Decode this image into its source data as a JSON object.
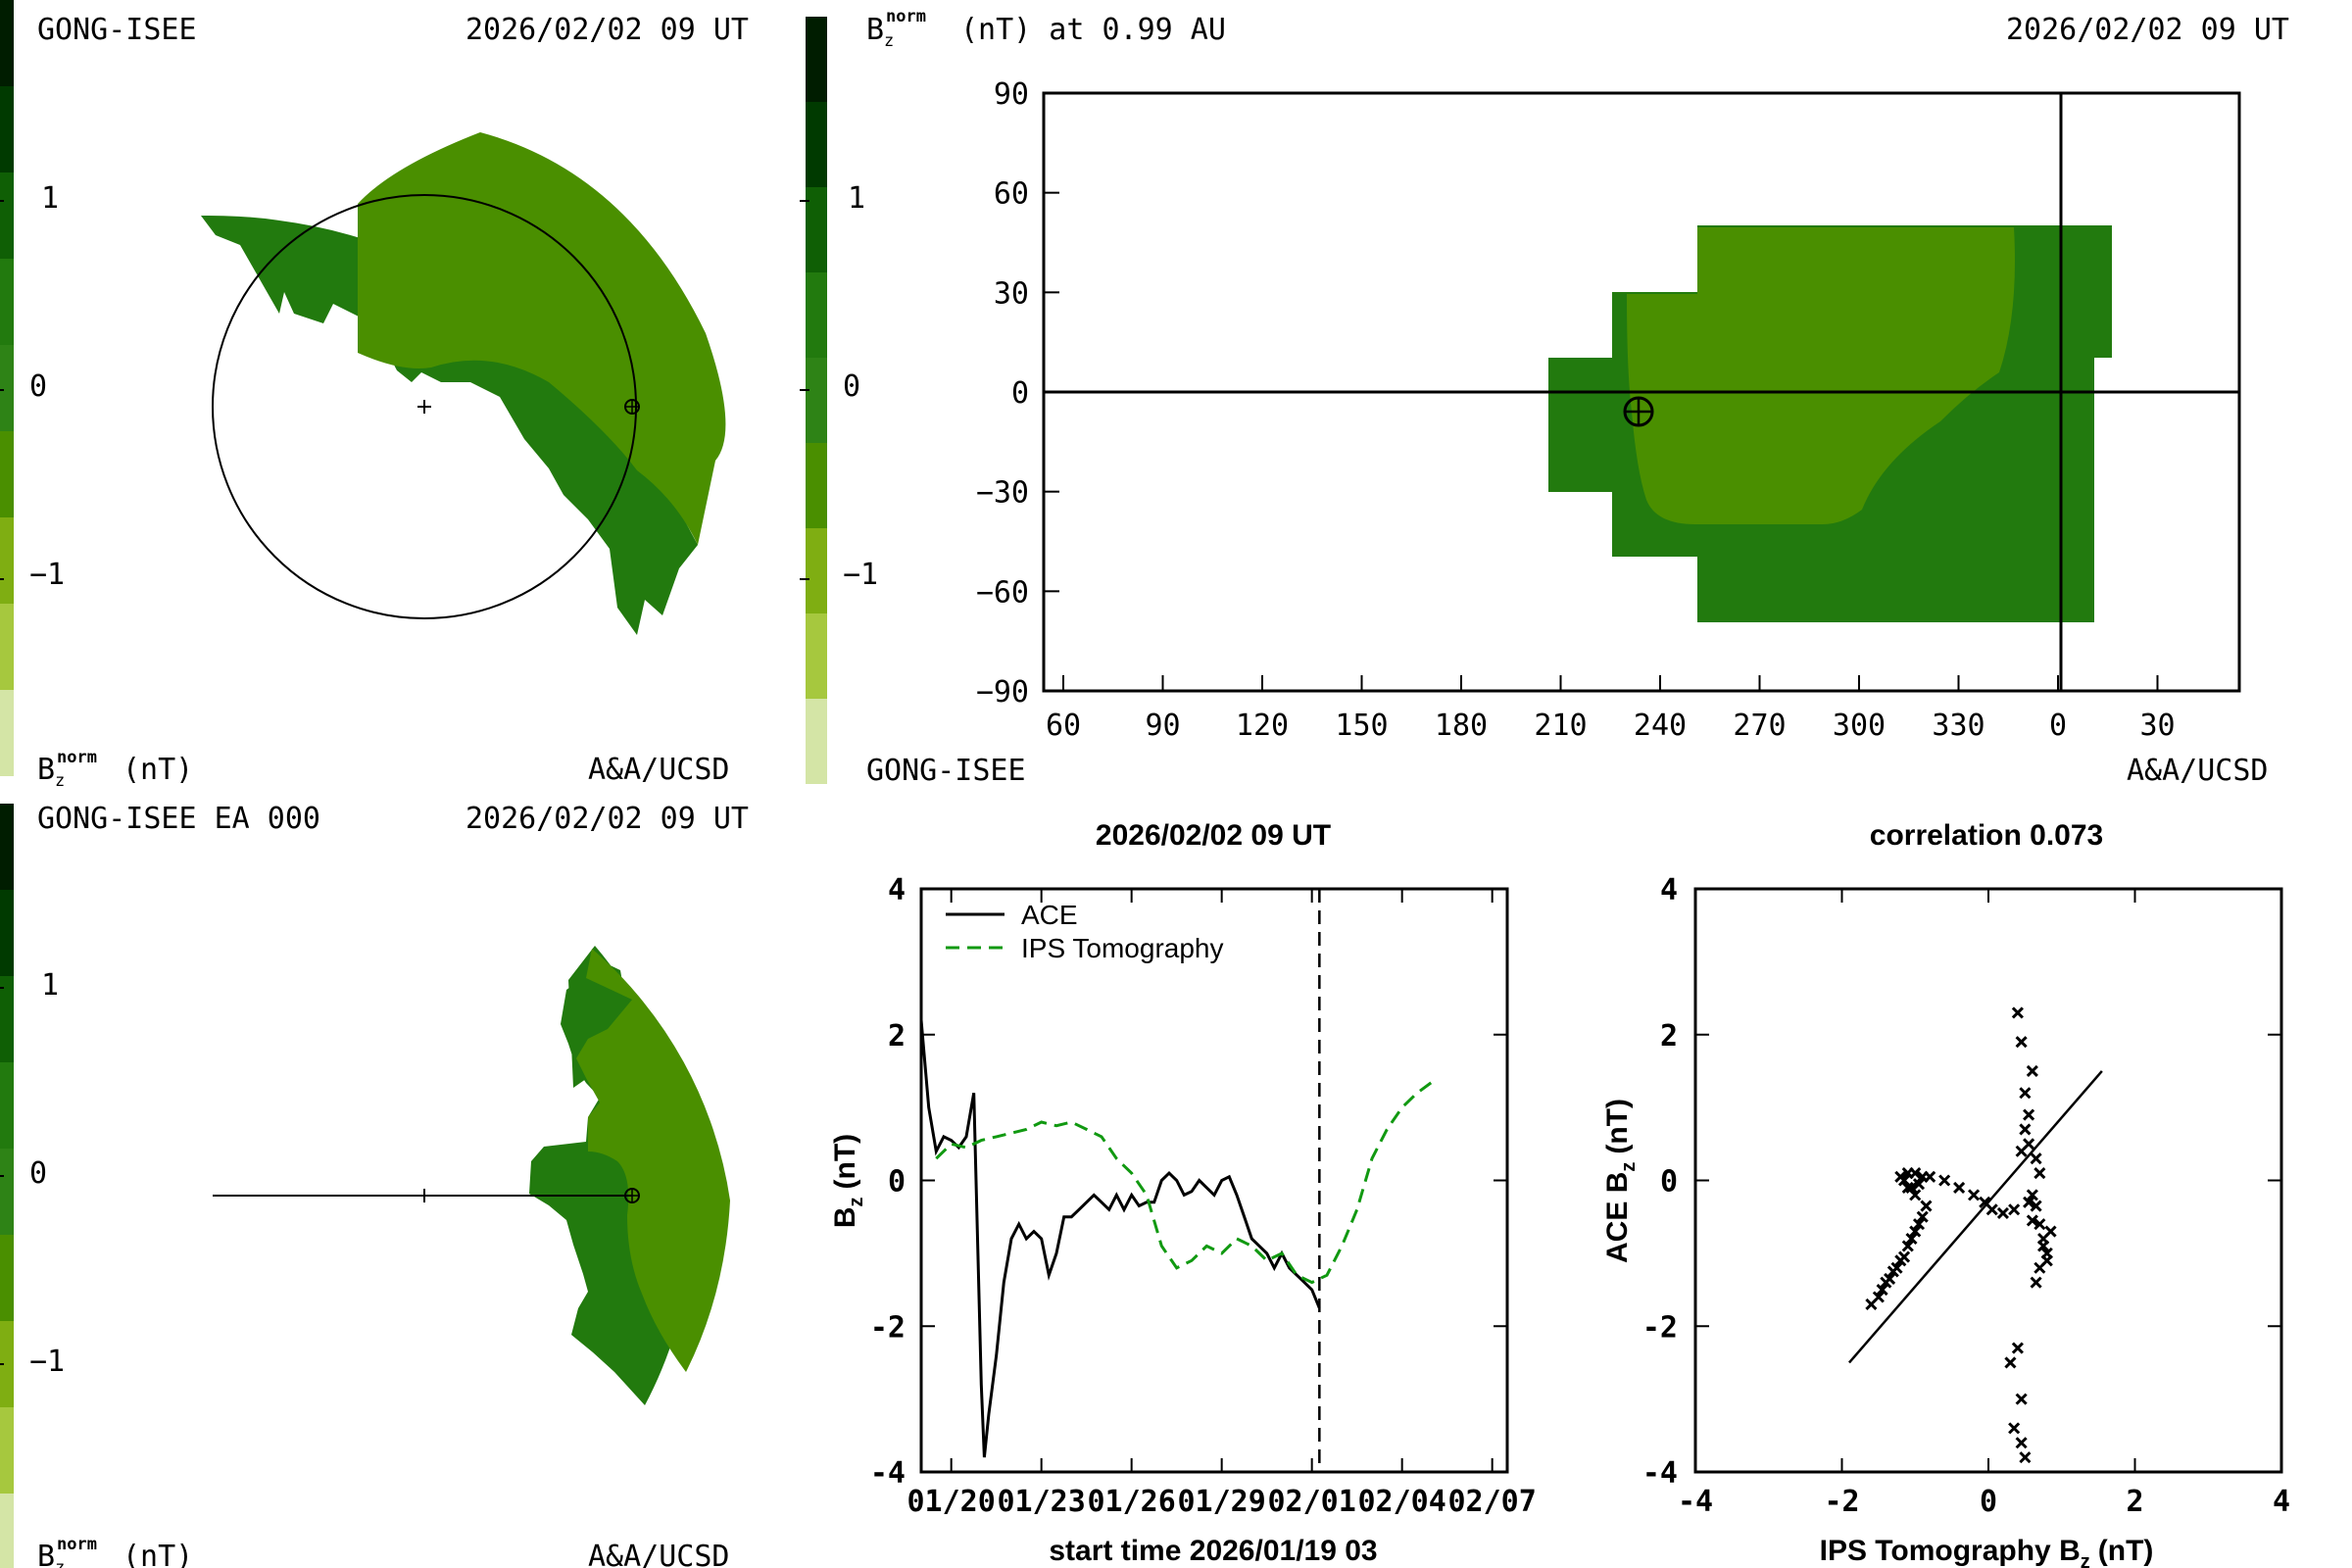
{
  "colors": {
    "scale": [
      "#d4e5a6",
      "#a6c83e",
      "#7fae12",
      "#4a8f00",
      "#2e8316",
      "#227a0e",
      "#0f5f05",
      "#003a00",
      "#001d00"
    ],
    "light": "#4a8f00",
    "mid": "#2e8316",
    "dark": "#227a0e",
    "line": "#000000",
    "ips": "#119911"
  },
  "panel_tl": {
    "source": "GONG-ISEE",
    "datetime": "2026/02/02 09 UT",
    "credit": "A&A/UCSD",
    "bar_label": "B",
    "bar_sub": "z",
    "bar_sup": "norm",
    "bar_unit": "(nT)",
    "bar_ticks": [
      "1",
      "0",
      "−1"
    ]
  },
  "panel_tr": {
    "title_b": "B",
    "title_sub": "z",
    "title_sup": "norm",
    "title_rest": "(nT) at 0.99 AU",
    "datetime": "2026/02/02 09 UT",
    "source": "GONG-ISEE",
    "credit": "A&A/UCSD",
    "bar_ticks": [
      "1",
      "0",
      "−1"
    ]
  },
  "panel_bl": {
    "source": "GONG-ISEE EA 000",
    "datetime": "2026/02/02 09 UT",
    "credit": "A&A/UCSD",
    "bar_label": "B",
    "bar_sub": "z",
    "bar_sup": "norm",
    "bar_unit": "(nT)",
    "bar_ticks": [
      "1",
      "0",
      "−1"
    ]
  },
  "chart_data": [
    {
      "type": "heatmap",
      "x_ticks": [
        "60",
        "90",
        "120",
        "150",
        "180",
        "210",
        "240",
        "270",
        "300",
        "330",
        "0",
        "30"
      ],
      "y_ticks": [
        "90",
        "60",
        "30",
        "0",
        "−30",
        "−60",
        "−90"
      ],
      "ylim": [
        -90,
        90
      ],
      "zlim": [
        -2,
        2
      ],
      "colorbar_ticks": [
        1,
        0,
        -1
      ]
    },
    {
      "type": "line",
      "title": "2026/02/02 09 UT",
      "xlabel": "start time 2026/01/19 03",
      "ylabel": "B",
      "ylabel_sub": "z",
      "ylabel_unit": "(nT)",
      "ylim": [
        -4,
        4
      ],
      "xlim": [
        0,
        19.5
      ],
      "x_ticks": [
        {
          "x": 1,
          "label": "01/20"
        },
        {
          "x": 4,
          "label": "01/23"
        },
        {
          "x": 7,
          "label": "01/26"
        },
        {
          "x": 10,
          "label": "01/29"
        },
        {
          "x": 13,
          "label": "02/01"
        },
        {
          "x": 16,
          "label": "02/04"
        },
        {
          "x": 19,
          "label": "02/07"
        }
      ],
      "y_ticks": [
        4,
        2,
        0,
        -2,
        -4
      ],
      "legend": [
        "ACE",
        "IPS Tomography"
      ],
      "now_x": 13.25,
      "series": [
        {
          "name": "ACE",
          "x": [
            0,
            0.25,
            0.5,
            0.75,
            1,
            1.25,
            1.5,
            1.75,
            2,
            2.1,
            2.25,
            2.5,
            2.75,
            3,
            3.25,
            3.5,
            3.75,
            4,
            4.25,
            4.5,
            4.75,
            5,
            5.25,
            5.5,
            5.75,
            6,
            6.25,
            6.5,
            6.75,
            7,
            7.25,
            7.5,
            7.75,
            8,
            8.25,
            8.5,
            8.75,
            9,
            9.25,
            9.5,
            9.75,
            10,
            10.25,
            10.5,
            10.75,
            11,
            11.25,
            11.5,
            11.75,
            12,
            12.25,
            12.5,
            12.75,
            13,
            13.25
          ],
          "values": [
            2.2,
            1.0,
            0.4,
            0.6,
            0.55,
            0.45,
            0.6,
            1.2,
            -2.8,
            -3.8,
            -3.2,
            -2.4,
            -1.4,
            -0.8,
            -0.6,
            -0.8,
            -0.7,
            -0.8,
            -1.3,
            -1.0,
            -0.5,
            -0.5,
            -0.4,
            -0.3,
            -0.2,
            -0.3,
            -0.4,
            -0.2,
            -0.4,
            -0.2,
            -0.35,
            -0.3,
            -0.3,
            0.0,
            0.1,
            0.0,
            -0.2,
            -0.15,
            0.0,
            -0.1,
            -0.2,
            0.0,
            0.05,
            -0.2,
            -0.5,
            -0.8,
            -0.9,
            -1.0,
            -1.2,
            -1.0,
            -1.2,
            -1.3,
            -1.4,
            -1.5,
            -1.75
          ]
        },
        {
          "name": "IPS Tomography",
          "x": [
            0.5,
            1,
            1.5,
            2,
            2.5,
            3,
            3.5,
            4,
            4.5,
            5,
            5.5,
            6,
            6.5,
            7,
            7.5,
            8,
            8.5,
            9,
            9.5,
            10,
            10.5,
            11,
            11.5,
            12,
            12.5,
            13,
            13.5,
            14,
            14.5,
            15,
            15.5,
            16,
            16.5,
            17
          ],
          "values": [
            0.3,
            0.5,
            0.45,
            0.55,
            0.6,
            0.65,
            0.7,
            0.8,
            0.75,
            0.8,
            0.7,
            0.6,
            0.3,
            0.1,
            -0.2,
            -0.9,
            -1.2,
            -1.1,
            -0.9,
            -1.0,
            -0.8,
            -0.9,
            -1.1,
            -1.0,
            -1.3,
            -1.4,
            -1.3,
            -0.9,
            -0.4,
            0.3,
            0.7,
            1.0,
            1.2,
            1.35
          ]
        }
      ]
    },
    {
      "type": "scatter",
      "title": "correlation 0.073",
      "xlabel": "IPS Tomography B",
      "xlabel_sub": "z",
      "xlabel_unit": "(nT)",
      "ylabel": "ACE B",
      "ylabel_sub": "z",
      "ylabel_unit": "(nT)",
      "xlim": [
        -4,
        4
      ],
      "ylim": [
        -4,
        4
      ],
      "x_ticks": [
        "-4",
        "-2",
        "0",
        "2",
        "4"
      ],
      "y_ticks": [
        "4",
        "2",
        "0",
        "-2",
        "-4"
      ],
      "fit_line": {
        "x": [
          -1.9,
          1.55
        ],
        "y": [
          -2.5,
          1.5
        ]
      },
      "points": [
        [
          -1.6,
          -1.7
        ],
        [
          -1.5,
          -1.6
        ],
        [
          -1.45,
          -1.5
        ],
        [
          -1.4,
          -1.4
        ],
        [
          -1.35,
          -1.35
        ],
        [
          -1.3,
          -1.25
        ],
        [
          -1.25,
          -1.2
        ],
        [
          -1.2,
          -1.1
        ],
        [
          -1.15,
          -1.05
        ],
        [
          -1.1,
          -0.9
        ],
        [
          -1.05,
          -0.8
        ],
        [
          -1.0,
          -0.7
        ],
        [
          -0.95,
          -0.6
        ],
        [
          -0.9,
          -0.5
        ],
        [
          -0.85,
          -0.35
        ],
        [
          -1.0,
          -0.2
        ],
        [
          -1.1,
          -0.1
        ],
        [
          -1.15,
          0.0
        ],
        [
          -1.2,
          0.05
        ],
        [
          -1.1,
          0.1
        ],
        [
          -1.0,
          0.1
        ],
        [
          -0.9,
          0.05
        ],
        [
          -0.8,
          0.05
        ],
        [
          -0.95,
          -0.05
        ],
        [
          -1.05,
          -0.1
        ],
        [
          -0.6,
          0.0
        ],
        [
          -0.4,
          -0.1
        ],
        [
          -0.2,
          -0.2
        ],
        [
          -0.05,
          -0.3
        ],
        [
          0.05,
          -0.4
        ],
        [
          0.2,
          -0.45
        ],
        [
          0.35,
          -0.4
        ],
        [
          0.45,
          0.4
        ],
        [
          0.5,
          0.7
        ],
        [
          0.55,
          0.9
        ],
        [
          0.5,
          1.2
        ],
        [
          0.6,
          1.5
        ],
        [
          0.45,
          1.9
        ],
        [
          0.4,
          2.3
        ],
        [
          0.55,
          0.5
        ],
        [
          0.65,
          0.3
        ],
        [
          0.7,
          0.1
        ],
        [
          0.6,
          -0.2
        ],
        [
          0.7,
          -0.6
        ],
        [
          0.75,
          -0.8
        ],
        [
          0.8,
          -1.0
        ],
        [
          0.7,
          -1.2
        ],
        [
          0.65,
          -1.4
        ],
        [
          0.75,
          -0.9
        ],
        [
          0.85,
          -0.7
        ],
        [
          0.4,
          -2.3
        ],
        [
          0.3,
          -2.5
        ],
        [
          0.45,
          -3.0
        ],
        [
          0.35,
          -3.4
        ],
        [
          0.5,
          -3.8
        ],
        [
          0.45,
          -3.6
        ],
        [
          0.55,
          -0.3
        ],
        [
          0.6,
          -0.55
        ],
        [
          0.8,
          -1.1
        ],
        [
          0.65,
          -0.35
        ]
      ]
    }
  ]
}
